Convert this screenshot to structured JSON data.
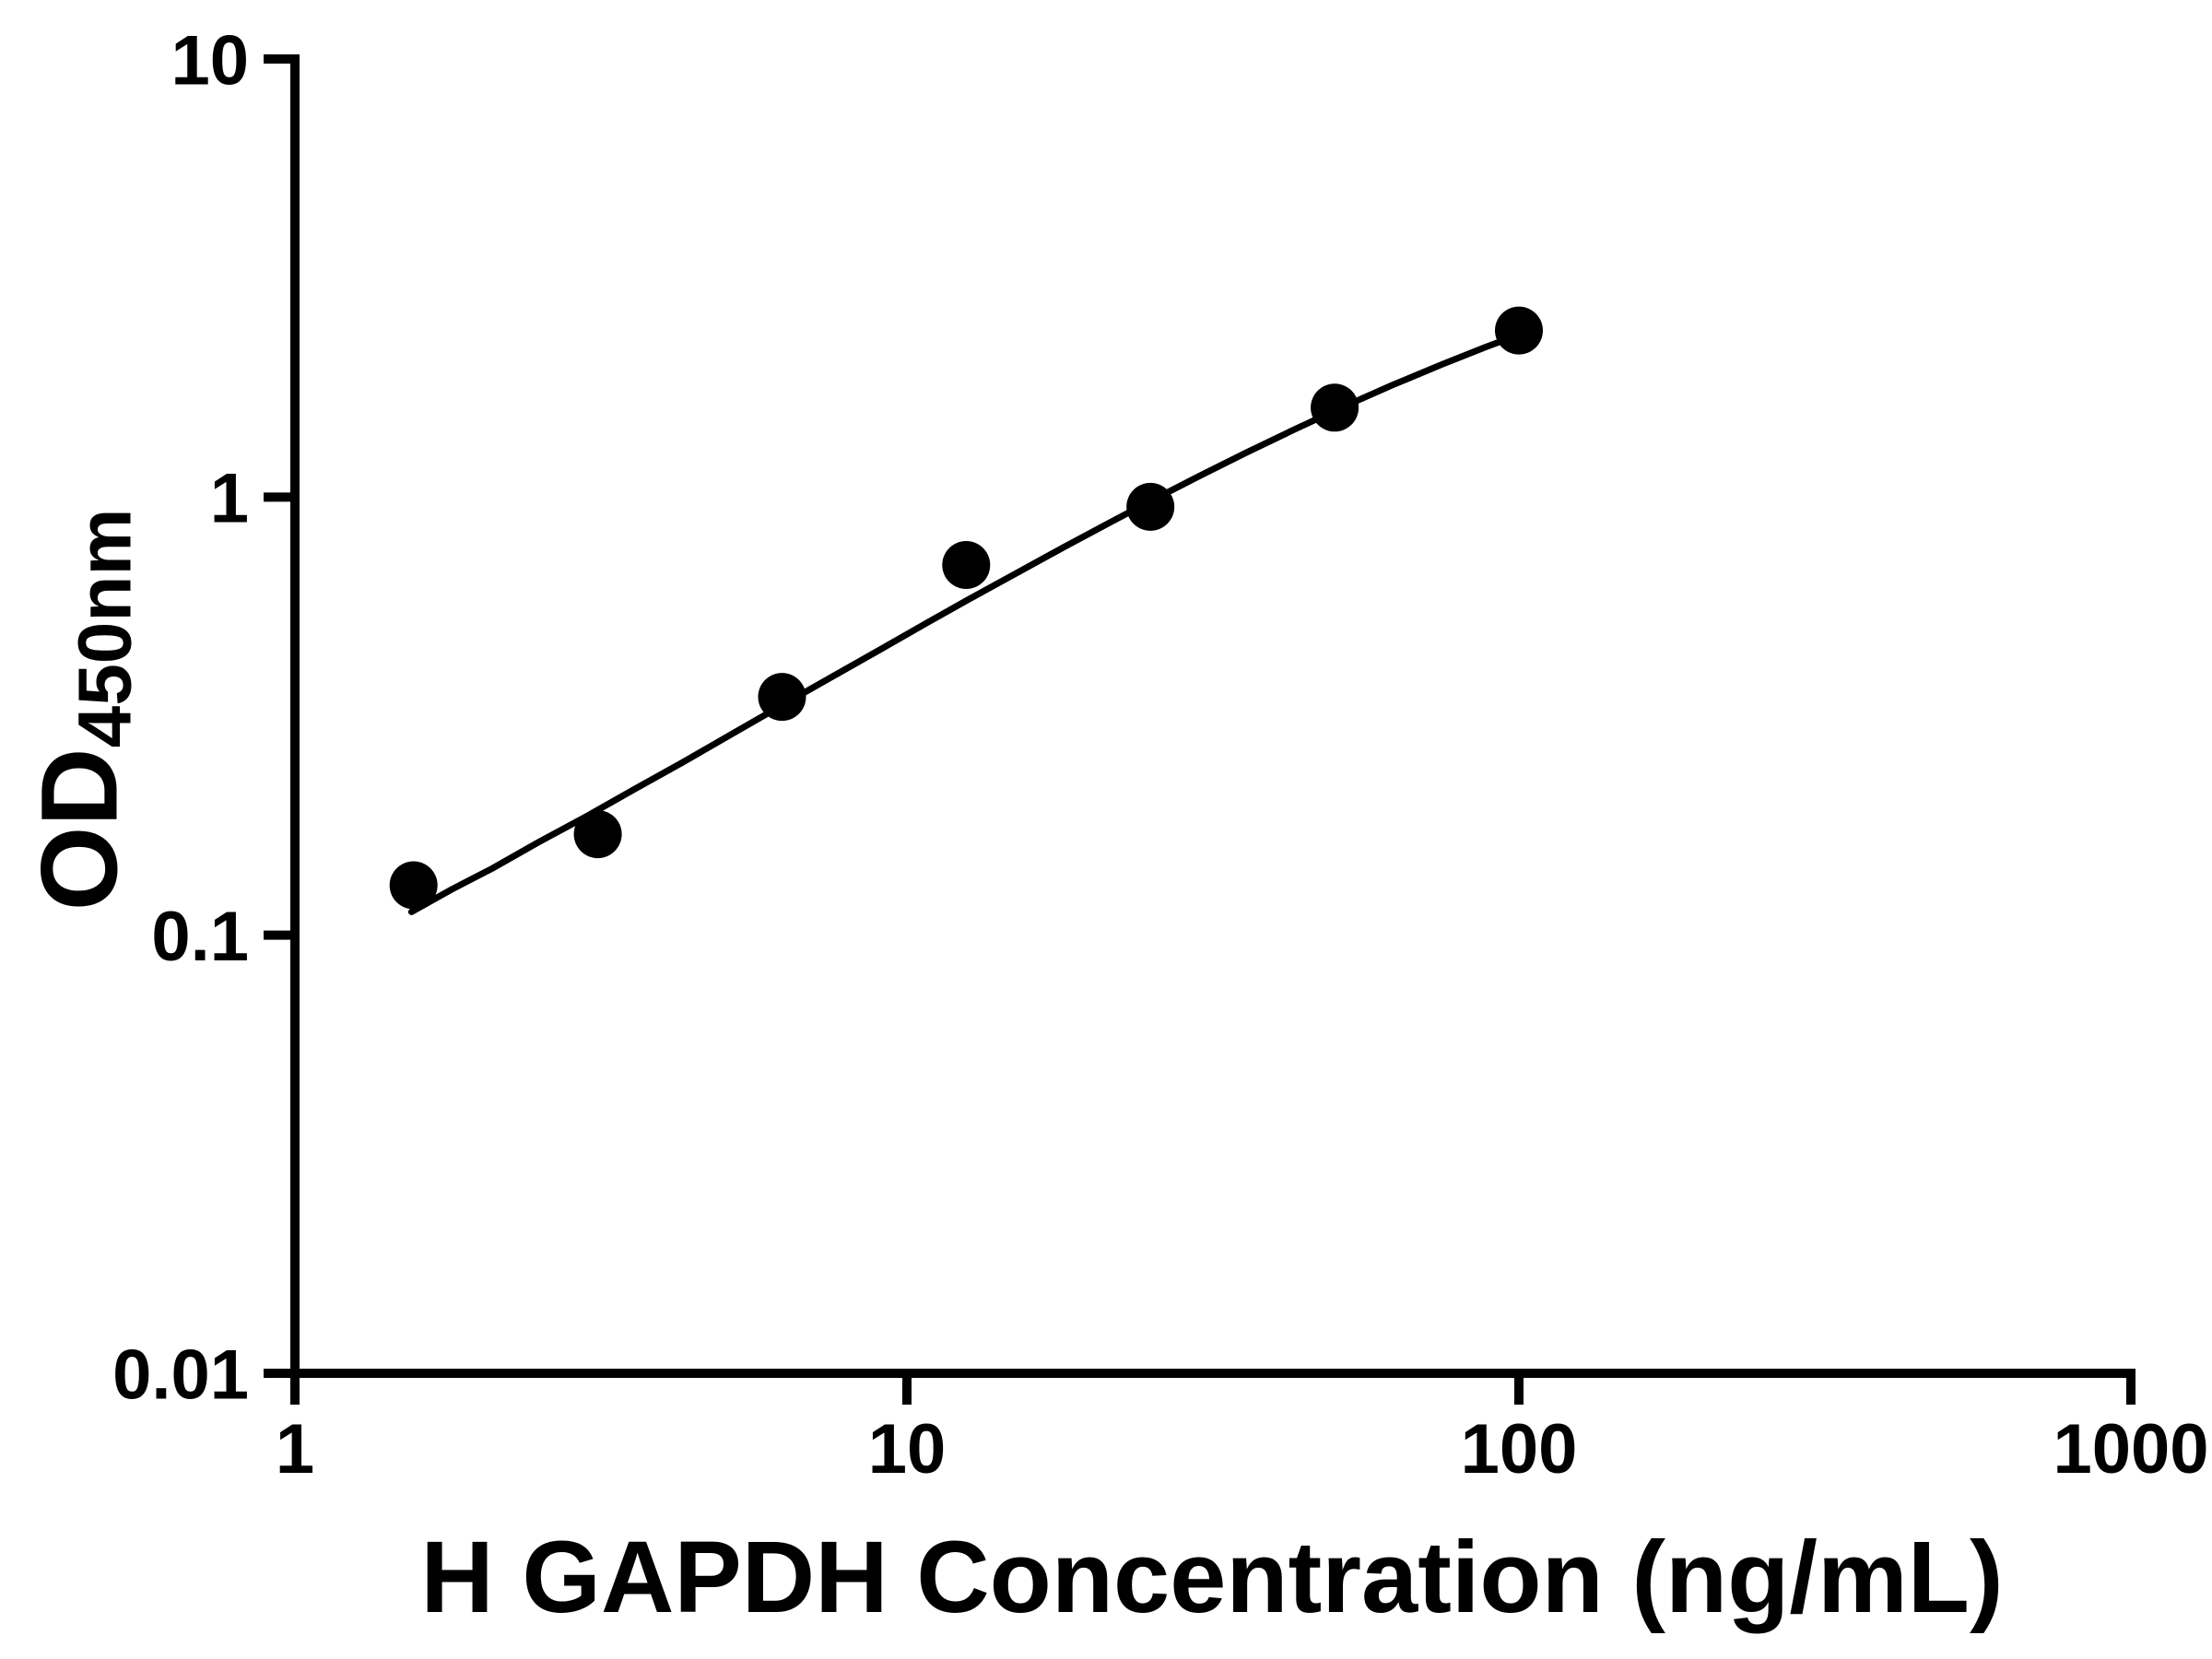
{
  "chart_data": {
    "type": "scatter",
    "title": "",
    "xlabel": "H GAPDH Concentration (ng/mL)",
    "ylabel": "OD450nm",
    "ylabel_base": "OD",
    "ylabel_sub": "450nm",
    "x_scale": "log",
    "y_scale": "log",
    "xlim": [
      1,
      1000
    ],
    "ylim": [
      0.01,
      10
    ],
    "x_ticks": [
      1,
      10,
      100,
      1000
    ],
    "x_tick_labels": [
      "1",
      "10",
      "100",
      "1000"
    ],
    "y_ticks": [
      0.01,
      0.1,
      1,
      10
    ],
    "y_tick_labels": [
      "0.01",
      "0.1",
      "1",
      "10"
    ],
    "grid": false,
    "legend": "none",
    "series": [
      {
        "name": "",
        "marker": "filled-circle",
        "x": [
          1.5625,
          3.125,
          6.25,
          12.5,
          25,
          50,
          100
        ],
        "y": [
          0.13,
          0.17,
          0.35,
          0.7,
          0.95,
          1.6,
          2.4
        ]
      }
    ],
    "fit_curve": {
      "x": [
        1.55,
        1.8,
        2.1,
        2.5,
        3.0,
        3.6,
        4.3,
        5.2,
        6.25,
        7.5,
        9.0,
        10.8,
        12.5,
        15,
        18,
        21.5,
        25,
        30,
        36,
        43,
        52,
        62,
        75,
        88,
        100
      ],
      "y": [
        0.113,
        0.127,
        0.142,
        0.163,
        0.187,
        0.216,
        0.248,
        0.289,
        0.335,
        0.387,
        0.447,
        0.517,
        0.58,
        0.667,
        0.767,
        0.876,
        0.979,
        1.116,
        1.267,
        1.427,
        1.614,
        1.799,
        2.01,
        2.196,
        2.348
      ]
    },
    "colors": {
      "foreground": "#000000",
      "background": "#ffffff",
      "point": "#000000",
      "curve": "#000000",
      "axis": "#000000"
    }
  }
}
